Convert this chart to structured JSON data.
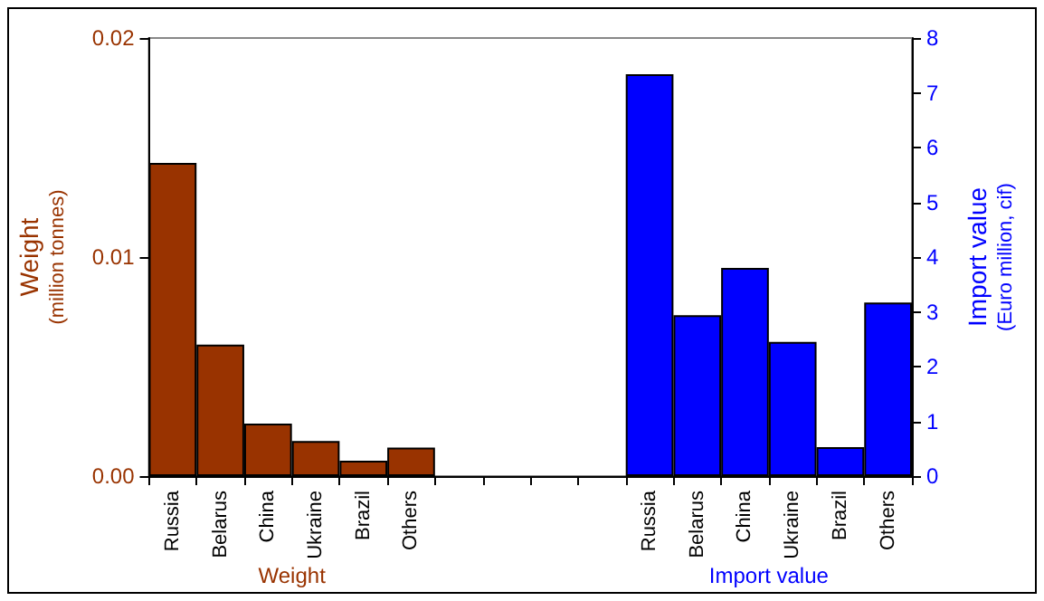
{
  "chart_data": {
    "type": "bar",
    "ylabel": "Weight\n(million tonnes)",
    "y2label": "Import value\n(Euro million, cif)",
    "categories": [
      "Russia",
      "Belarus",
      "China",
      "Ukraine",
      "Brazil",
      "Others",
      null,
      null,
      null,
      null,
      "Russia",
      "Belarus",
      "China",
      "Ukraine",
      "Brazil",
      "Others"
    ],
    "series": [
      {
        "name": "Weight",
        "color": "#993300",
        "values": [
          0.0143,
          0.006,
          0.0024,
          0.0016,
          0.0007,
          0.0013,
          null,
          null,
          null,
          null,
          null,
          null,
          null,
          null,
          null,
          null
        ]
      },
      {
        "name": "Import value",
        "color": "#0000ff",
        "axis": "y2",
        "values": [
          null,
          null,
          null,
          null,
          null,
          null,
          null,
          null,
          null,
          null,
          7.34,
          2.94,
          3.8,
          2.45,
          0.53,
          3.17
        ]
      }
    ],
    "ylim": [
      0,
      0.02
    ],
    "yticks": [
      {
        "value": 0,
        "label": "0.00"
      },
      {
        "value": 0.01,
        "label": "0.01"
      },
      {
        "value": 0.02,
        "label": "0.02"
      }
    ],
    "y2lim": [
      0,
      8
    ],
    "y2ticks": [
      0,
      1,
      2,
      3,
      4,
      5,
      6,
      7,
      8
    ],
    "legend": false
  }
}
